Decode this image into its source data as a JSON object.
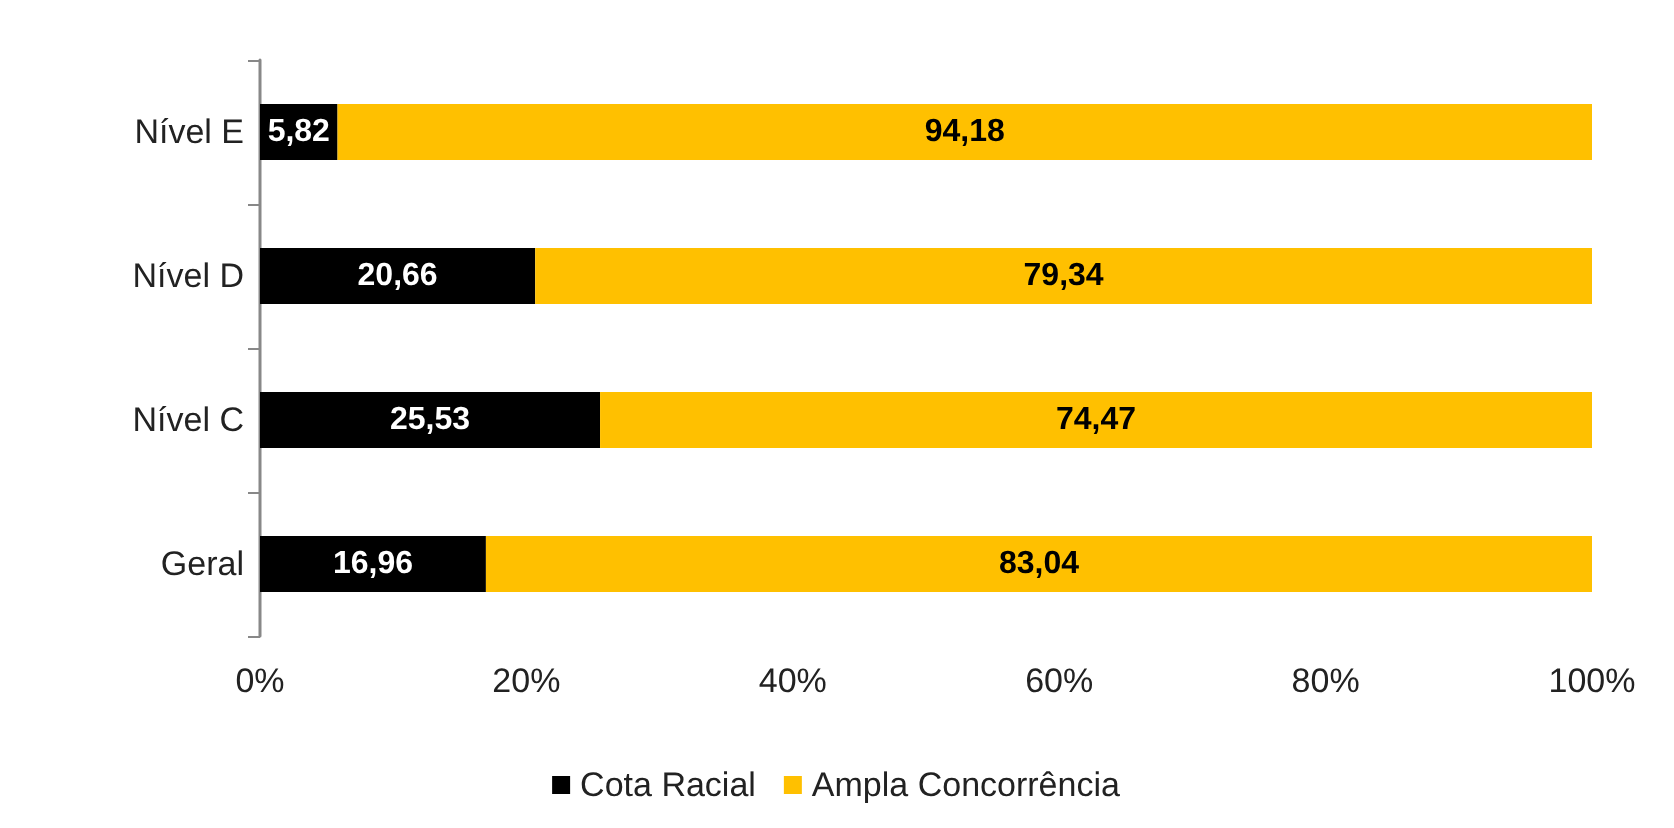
{
  "chart_data": {
    "type": "bar",
    "orientation": "horizontal",
    "stacked": true,
    "categories": [
      "Nível E",
      "Nível D",
      "Nível C",
      "Geral"
    ],
    "series": [
      {
        "name": "Cota Racial",
        "color": "#000000",
        "values": [
          5.82,
          20.66,
          25.53,
          16.96
        ],
        "value_labels": [
          "5,82",
          "20,66",
          "25,53",
          "16,96"
        ]
      },
      {
        "name": "Ampla Concorrência",
        "color": "#ffc000",
        "values": [
          94.18,
          79.34,
          74.47,
          83.04
        ],
        "value_labels": [
          "94,18",
          "79,34",
          "74,47",
          "83,04"
        ]
      }
    ],
    "xlim": [
      0,
      100
    ],
    "xticks": [
      {
        "value": 0,
        "label": "0%"
      },
      {
        "value": 20,
        "label": "20%"
      },
      {
        "value": 40,
        "label": "40%"
      },
      {
        "value": 60,
        "label": "60%"
      },
      {
        "value": 80,
        "label": "80%"
      },
      {
        "value": 100,
        "label": "100%"
      }
    ],
    "grid": false,
    "legend": "bottom"
  }
}
